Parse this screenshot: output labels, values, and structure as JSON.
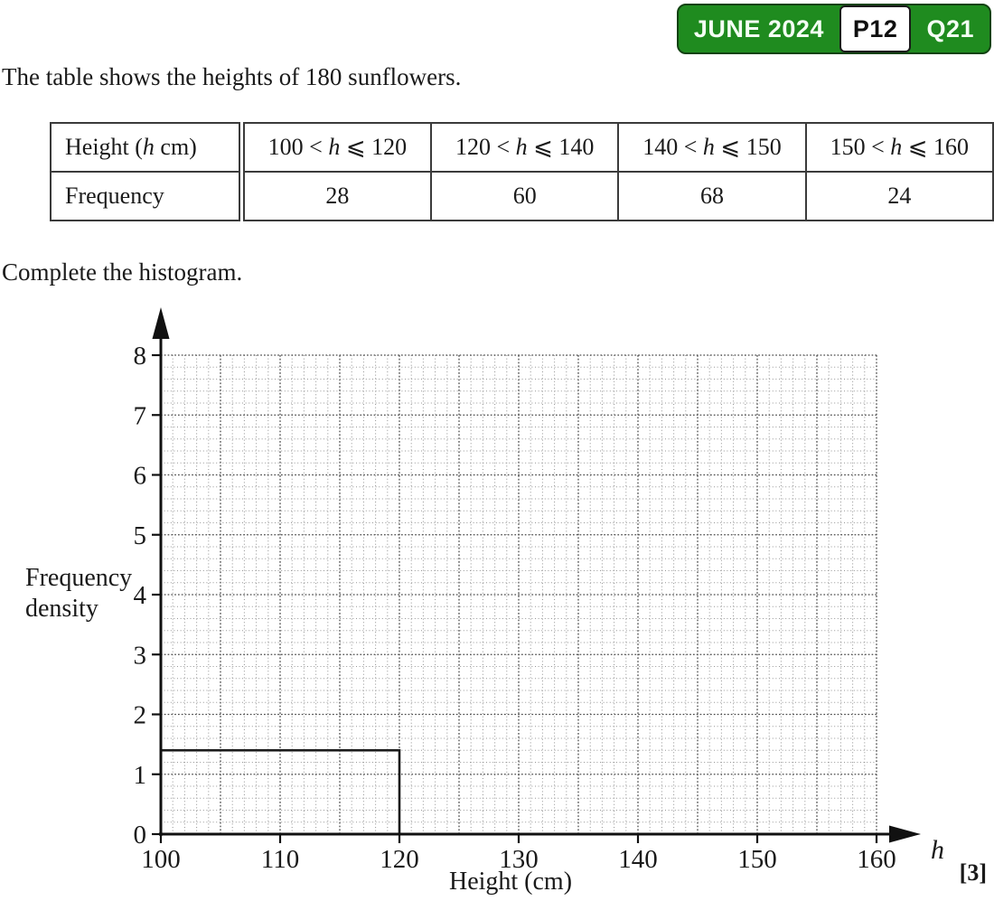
{
  "badge": {
    "session": "JUNE 2024",
    "paper": "P12",
    "question": "Q21",
    "green": "#1f8b1f"
  },
  "intro_text": "The table shows the heights of 180 sunflowers.",
  "instruction_text": "Complete the histogram.",
  "table": {
    "var": "h",
    "header_label": {
      "pre": "Height (",
      "post": " cm)"
    },
    "frequency_label": "Frequency",
    "symbols": {
      "lt": " < ",
      "leq": " ⩽ "
    },
    "classes": [
      {
        "lower": "100",
        "upper": "120",
        "frequency": "28"
      },
      {
        "lower": "120",
        "upper": "140",
        "frequency": "60"
      },
      {
        "lower": "140",
        "upper": "150",
        "frequency": "68"
      },
      {
        "lower": "150",
        "upper": "160",
        "frequency": "24"
      }
    ]
  },
  "chart_data": {
    "type": "histogram",
    "title": "",
    "xlabel": "Height (cm)",
    "x_axis_var": "h",
    "ylabel_lines": [
      "Frequency",
      "density"
    ],
    "xlim": [
      100,
      160
    ],
    "ylim": [
      0,
      8
    ],
    "x_ticks": [
      "100",
      "110",
      "120",
      "130",
      "140",
      "150",
      "160"
    ],
    "y_ticks": [
      "0",
      "1",
      "2",
      "3",
      "4",
      "5",
      "6",
      "7",
      "8"
    ],
    "minor_step_x_cm": 1,
    "minor_step_y_units": 0.2,
    "major_every_cells": 5,
    "grid_on": true,
    "drawn_bars": [
      {
        "x0": 100,
        "x1": 120,
        "frequency_density": 1.4
      }
    ],
    "total_frequency": 180
  },
  "marks_label": "[3]"
}
